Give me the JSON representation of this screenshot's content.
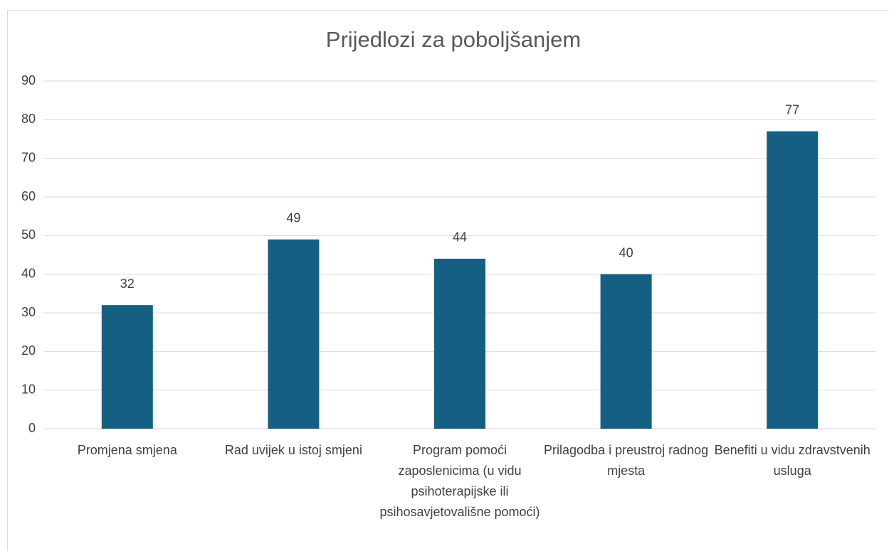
{
  "chart_data": {
    "type": "bar",
    "title": "Prijedlozi za poboljšanjem",
    "categories": [
      "Promjena smjena",
      "Rad uvijek u istoj smjeni",
      "Program pomoći zaposlenicima (u vidu psihoterapijske ili psihosavjetovališne pomoći)",
      "Prilagodba i preustroj radnog mjesta",
      "Benefiti u vidu zdravstvenih usluga"
    ],
    "values": [
      32,
      49,
      44,
      40,
      77
    ],
    "color": "#155f82",
    "ylim": [
      0,
      90
    ],
    "yticks": [
      0,
      10,
      20,
      30,
      40,
      50,
      60,
      70,
      80,
      90
    ],
    "grid": true
  }
}
